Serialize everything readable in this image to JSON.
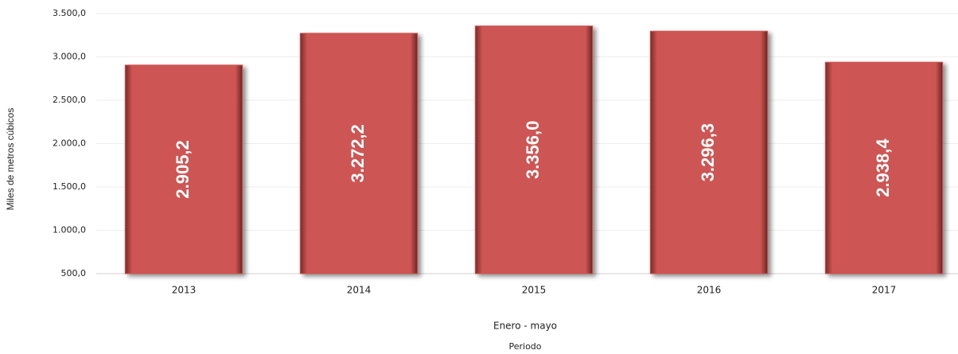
{
  "chart_data": {
    "type": "bar",
    "ylabel": "Miles de metros cúbicos",
    "subtitle": "Enero - mayo",
    "xlabel": "Periodo",
    "categories": [
      "2013",
      "2014",
      "2015",
      "2016",
      "2017"
    ],
    "values": [
      2905.2,
      3272.2,
      3356.0,
      3296.3,
      2938.4
    ],
    "value_labels": [
      "2.905,2",
      "3.272,2",
      "3.356,0",
      "3.296,3",
      "2.938,4"
    ],
    "color": "#cd5553",
    "ylim": [
      500,
      3500
    ],
    "yticks": [
      {
        "value": 500,
        "label": "500,0"
      },
      {
        "value": 1000,
        "label": "1.000,0"
      },
      {
        "value": 1500,
        "label": "1.500,0"
      },
      {
        "value": 2000,
        "label": "2.000,0"
      },
      {
        "value": 2500,
        "label": "2.500,0"
      },
      {
        "value": 3000,
        "label": "3.000,0"
      },
      {
        "value": 3500,
        "label": "3.500,0"
      }
    ],
    "grid": true
  }
}
